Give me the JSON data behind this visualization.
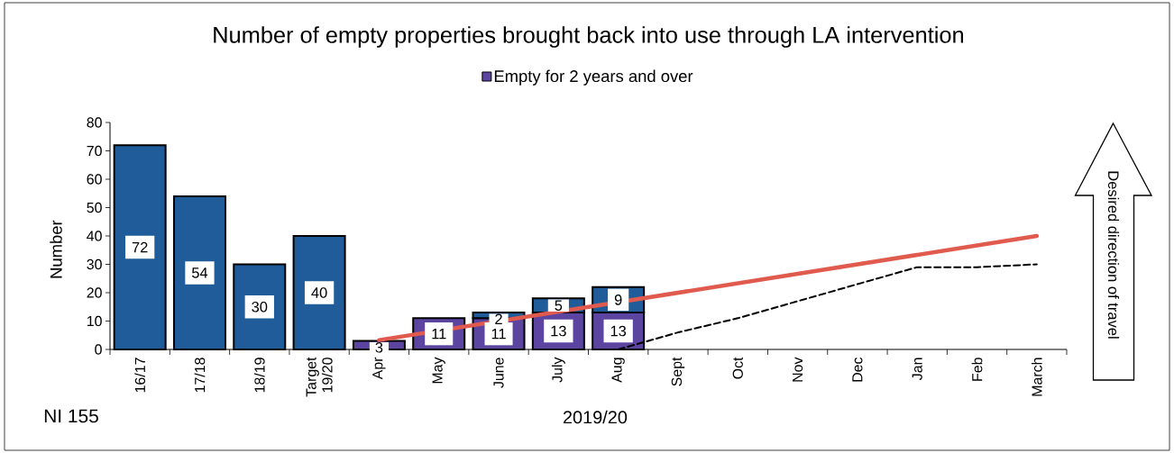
{
  "chart_data": {
    "type": "bar",
    "title": "Number of empty properties brought back into use through LA intervention",
    "xlabel": "2019/20",
    "ylabel": "Number",
    "annotations": [
      "NI 155",
      "Desired direction of travel"
    ],
    "categories": [
      "16/17",
      "17/18",
      "18/19",
      "Target 19/20",
      "Apr",
      "May",
      "June",
      "July",
      "Aug",
      "Sept",
      "Oct",
      "Nov",
      "Dec",
      "Jan",
      "Feb",
      "March"
    ],
    "stacked": true,
    "legend": "top",
    "ylim": [
      0,
      80
    ],
    "yticks": [
      0,
      10,
      20,
      30,
      40,
      50,
      60,
      70,
      80
    ],
    "series": [
      {
        "name": "Empty for 2 years and over",
        "type": "bar",
        "color": "#5b45a1",
        "values": [
          null,
          null,
          null,
          null,
          3,
          11,
          11,
          13,
          13,
          null,
          null,
          null,
          null,
          null,
          null,
          null
        ],
        "value_labels": [
          null,
          null,
          null,
          null,
          "3",
          "11",
          "11",
          "13",
          "13",
          null,
          null,
          null,
          null,
          null,
          null,
          null
        ]
      },
      {
        "type": "bar",
        "color": "#1f5c99",
        "values": [
          72,
          54,
          30,
          40,
          null,
          null,
          2,
          5,
          9,
          null,
          null,
          null,
          null,
          null,
          null,
          null
        ],
        "value_labels": [
          "72",
          "54",
          "30",
          "40",
          null,
          null,
          "2",
          "5",
          "9",
          null,
          null,
          null,
          null,
          null,
          null,
          null
        ]
      },
      {
        "type": "line",
        "color": "#e05a4e",
        "x": [
          "Apr",
          "March"
        ],
        "values": [
          3.3,
          40
        ]
      },
      {
        "type": "line",
        "color": "#000000",
        "line_style": "dashed",
        "values": [
          null,
          null,
          null,
          null,
          null,
          null,
          null,
          null,
          0,
          6,
          11,
          17,
          23,
          29,
          29,
          30
        ]
      }
    ]
  }
}
